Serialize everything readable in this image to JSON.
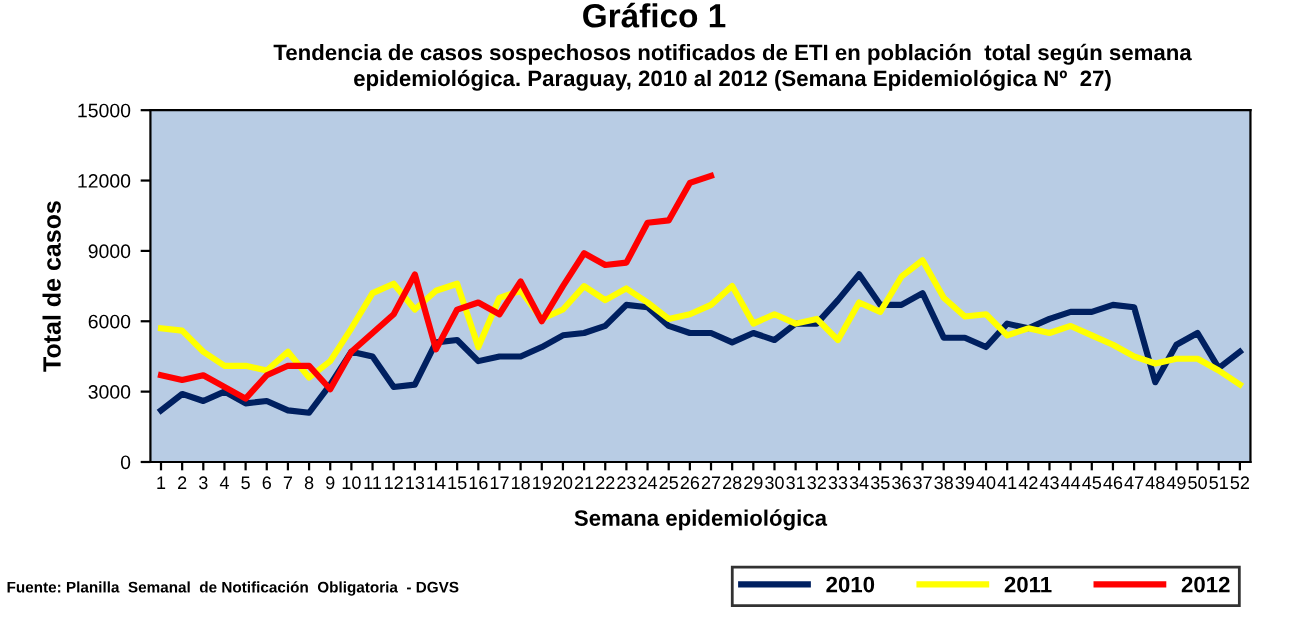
{
  "chart_data": {
    "type": "line",
    "title": "Gráfico 1",
    "subtitle": "Tendencia de casos sospechosos notificados de ETI en población  total según semana\nepidemiológica. Paraguay, 2010 al 2012 (Semana Epidemiológica Nº  27)",
    "xlabel": "Semana epidemiológica",
    "ylabel": "Total de casos",
    "annotations": [
      "Fuente: Planilla  Semanal  de Notificación  Obligatoria  - DGVS"
    ],
    "categories": [
      "1",
      "2",
      "3",
      "4",
      "5",
      "6",
      "7",
      "8",
      "9",
      "10",
      "11",
      "12",
      "13",
      "14",
      "15",
      "16",
      "17",
      "18",
      "19",
      "20",
      "21",
      "22",
      "23",
      "24",
      "25",
      "26",
      "27",
      "28",
      "29",
      "30",
      "31",
      "32",
      "33",
      "34",
      "35",
      "36",
      "37",
      "38",
      "39",
      "40",
      "41",
      "42",
      "43",
      "44",
      "45",
      "46",
      "47",
      "48",
      "49",
      "50",
      "51",
      "52"
    ],
    "ylim": [
      0,
      15000
    ],
    "yticks": [
      0,
      3000,
      6000,
      9000,
      12000,
      15000
    ],
    "grid": false,
    "legend": "bottom right",
    "marker": "none",
    "line_style": "solid",
    "series": [
      {
        "name": "2010",
        "color": "#002060",
        "values": [
          2200,
          2900,
          2600,
          3000,
          2500,
          2600,
          2200,
          2100,
          3300,
          4700,
          4500,
          3200,
          3300,
          5100,
          5200,
          4300,
          4500,
          4500,
          4900,
          5400,
          5500,
          5800,
          6700,
          6600,
          5800,
          5500,
          5500,
          5100,
          5500,
          5200,
          5900,
          5900,
          6900,
          8000,
          6700,
          6700,
          7200,
          5300,
          5300,
          4900,
          5900,
          5700,
          6100,
          6400,
          6400,
          6700,
          6600,
          3400,
          5000,
          5500,
          4000,
          4700
        ]
      },
      {
        "name": "2011",
        "color": "#ffff00",
        "values": [
          5700,
          5600,
          4700,
          4100,
          4100,
          3900,
          4700,
          3600,
          4300,
          5700,
          7200,
          7600,
          6500,
          7300,
          7600,
          4900,
          7000,
          7300,
          6100,
          6500,
          7500,
          6900,
          7400,
          6800,
          6100,
          6300,
          6700,
          7500,
          5900,
          6300,
          5900,
          6100,
          5200,
          6800,
          6400,
          7900,
          8600,
          7000,
          6200,
          6300,
          5400,
          5700,
          5500,
          5800,
          5400,
          5000,
          4500,
          4200,
          4400,
          4400,
          3900,
          3300
        ]
      },
      {
        "name": "2012",
        "color": "#ff0000",
        "values": [
          3700,
          3500,
          3700,
          3200,
          2700,
          3700,
          4100,
          4100,
          3100,
          4700,
          5500,
          6300,
          8000,
          4800,
          6500,
          6800,
          6300,
          7700,
          6000,
          7500,
          8900,
          8400,
          8500,
          10200,
          10300,
          11900,
          12200,
          null,
          null,
          null,
          null,
          null,
          null,
          null,
          null,
          null,
          null,
          null,
          null,
          null,
          null,
          null,
          null,
          null,
          null,
          null,
          null,
          null,
          null,
          null,
          null,
          null
        ]
      }
    ]
  }
}
